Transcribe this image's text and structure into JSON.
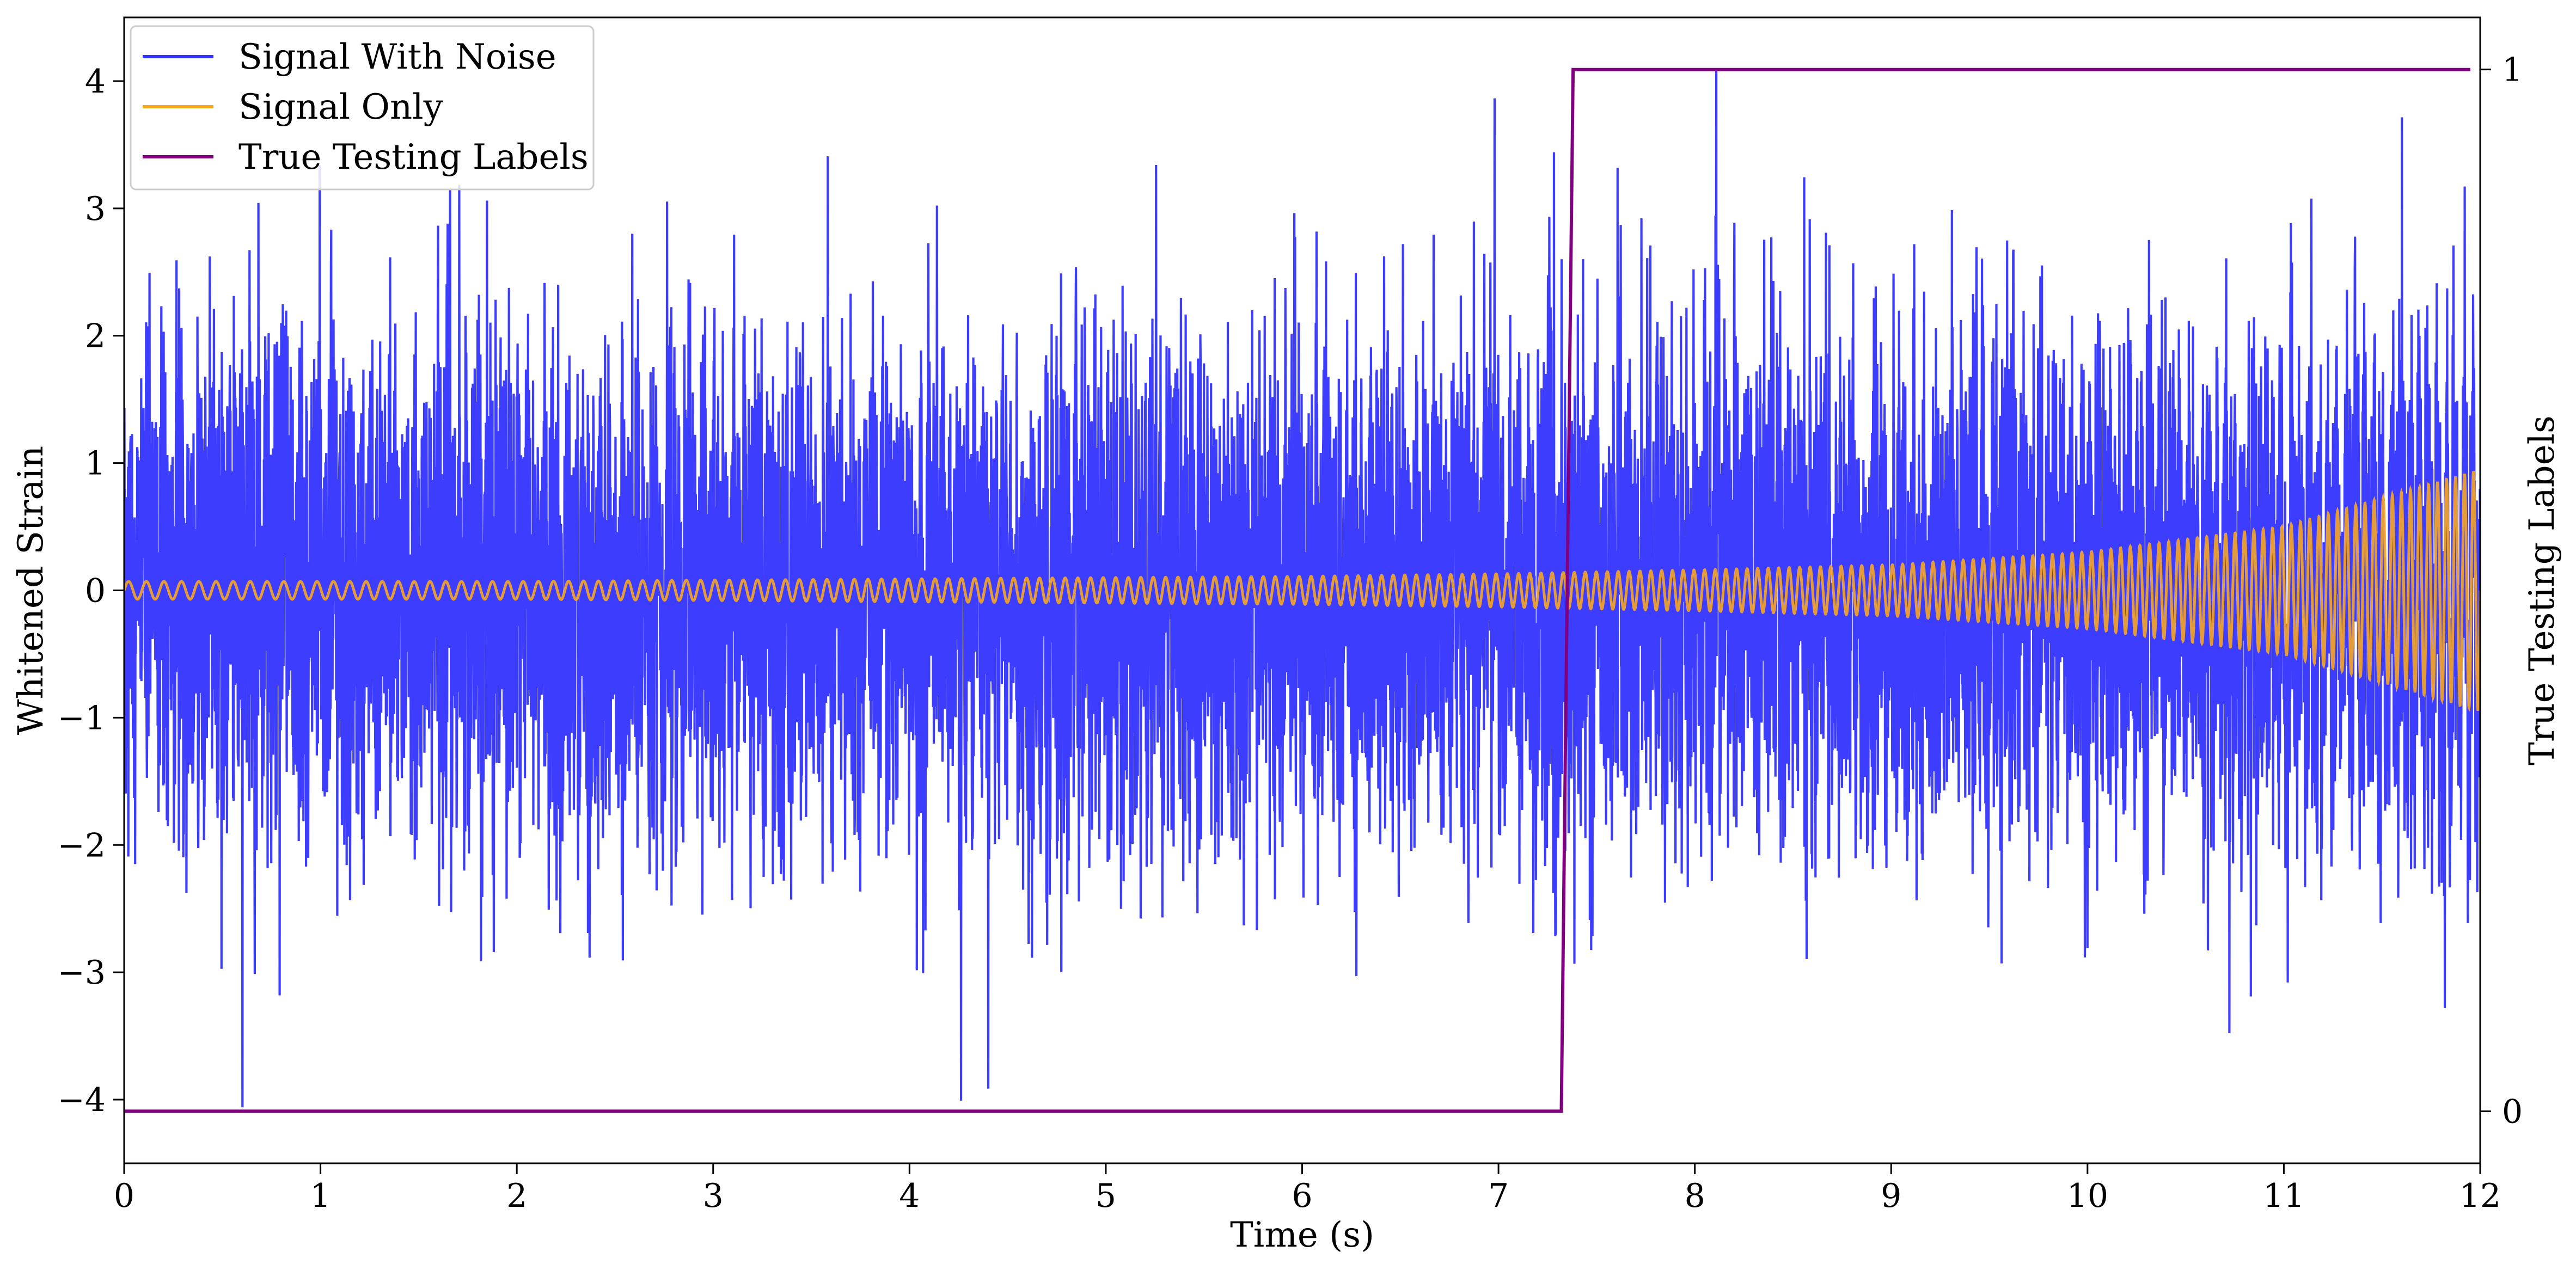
{
  "chart_data": {
    "type": "line",
    "xlabel": "Time (s)",
    "ylabel": "Whitened Strain",
    "y2label": "True Testing Labels",
    "xlim": [
      0,
      12
    ],
    "ylim": [
      -4.5,
      4.5
    ],
    "y2lim": [
      -0.05,
      1.05
    ],
    "xticks": [
      0,
      1,
      2,
      3,
      4,
      5,
      6,
      7,
      8,
      9,
      10,
      11,
      12
    ],
    "yticks": [
      -4,
      -3,
      -2,
      -1,
      0,
      1,
      2,
      3,
      4
    ],
    "ytick_labels": [
      "−4",
      "−3",
      "−2",
      "−1",
      "0",
      "1",
      "2",
      "3",
      "4"
    ],
    "y2ticks": [
      0,
      1
    ],
    "y2tick_labels": [
      "0",
      "1"
    ],
    "grid": false,
    "legend_position": "top-left",
    "series": [
      {
        "name": "Signal With Noise",
        "color": "#3333ff",
        "description_values": "white noise, std approx 1.0, peaks approx ±4",
        "x_range": [
          0,
          12
        ],
        "noise_std": 1.0,
        "signal_envelope": {
          "t": [
            0,
            2,
            4,
            6,
            7,
            8,
            9,
            10,
            11,
            12
          ],
          "amp": [
            0.07,
            0.07,
            0.09,
            0.11,
            0.13,
            0.16,
            0.2,
            0.3,
            0.5,
            0.95
          ]
        }
      },
      {
        "name": "Signal Only",
        "color": "#f5a623",
        "x_range": [
          0,
          12
        ],
        "frequency_start_hz": 11,
        "frequency_end_hz": 22,
        "envelope": {
          "t": [
            0,
            2,
            4,
            6,
            7,
            8,
            9,
            10,
            11,
            12
          ],
          "amp": [
            0.07,
            0.07,
            0.09,
            0.11,
            0.13,
            0.16,
            0.2,
            0.3,
            0.5,
            0.95
          ]
        }
      },
      {
        "name": "True Testing Labels",
        "color": "#800080",
        "axis": "right",
        "x": [
          0,
          7.32,
          7.38,
          11.95
        ],
        "y": [
          0,
          0,
          1,
          1
        ]
      }
    ]
  }
}
